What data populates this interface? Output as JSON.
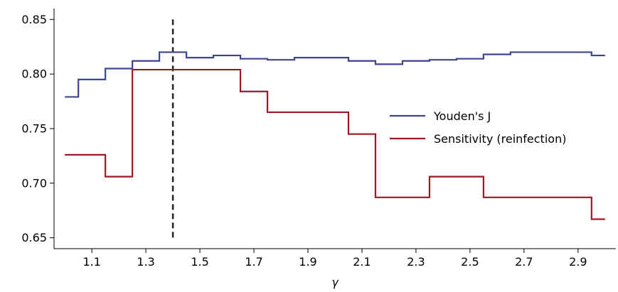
{
  "chart_data": {
    "type": "line",
    "step": "post",
    "xlabel": "γ",
    "ylabel": "",
    "title": "",
    "xlim": [
      0.96,
      3.04
    ],
    "ylim": [
      0.64,
      0.86
    ],
    "xticks": [
      1.1,
      1.3,
      1.5,
      1.7,
      1.9,
      2.1,
      2.3,
      2.5,
      2.7,
      2.9
    ],
    "xtick_labels": [
      "1.1",
      "1.3",
      "1.5",
      "1.7",
      "1.9",
      "2.1",
      "2.3",
      "2.5",
      "2.7",
      "2.9"
    ],
    "yticks": [
      0.65,
      0.7,
      0.75,
      0.8,
      0.85
    ],
    "ytick_labels": [
      "0.65",
      "0.70",
      "0.75",
      "0.80",
      "0.85"
    ],
    "grid": false,
    "legend_position": "center-right",
    "vline": {
      "x": 1.4,
      "y_from": 0.65,
      "y_to": 0.85,
      "style": "dashed",
      "color": "#222222"
    },
    "series": [
      {
        "name": "Youden's J",
        "color": "#3b4590",
        "x": [
          1.0,
          1.05,
          1.15,
          1.25,
          1.35,
          1.45,
          1.55,
          1.65,
          1.75,
          1.85,
          2.05,
          2.15,
          2.25,
          2.35,
          2.45,
          2.55,
          2.65,
          2.95
        ],
        "y": [
          0.779,
          0.795,
          0.805,
          0.812,
          0.82,
          0.815,
          0.817,
          0.814,
          0.813,
          0.815,
          0.812,
          0.809,
          0.812,
          0.813,
          0.814,
          0.818,
          0.82,
          0.817
        ],
        "x_end": 3.0
      },
      {
        "name": "Sensitivity (reinfection)",
        "color": "#9b1b24",
        "x": [
          1.0,
          1.15,
          1.25,
          1.65,
          1.75,
          2.05,
          2.15,
          2.35,
          2.55,
          2.95
        ],
        "y": [
          0.726,
          0.706,
          0.804,
          0.784,
          0.765,
          0.745,
          0.687,
          0.706,
          0.687,
          0.667
        ],
        "x_end": 3.0
      }
    ]
  }
}
